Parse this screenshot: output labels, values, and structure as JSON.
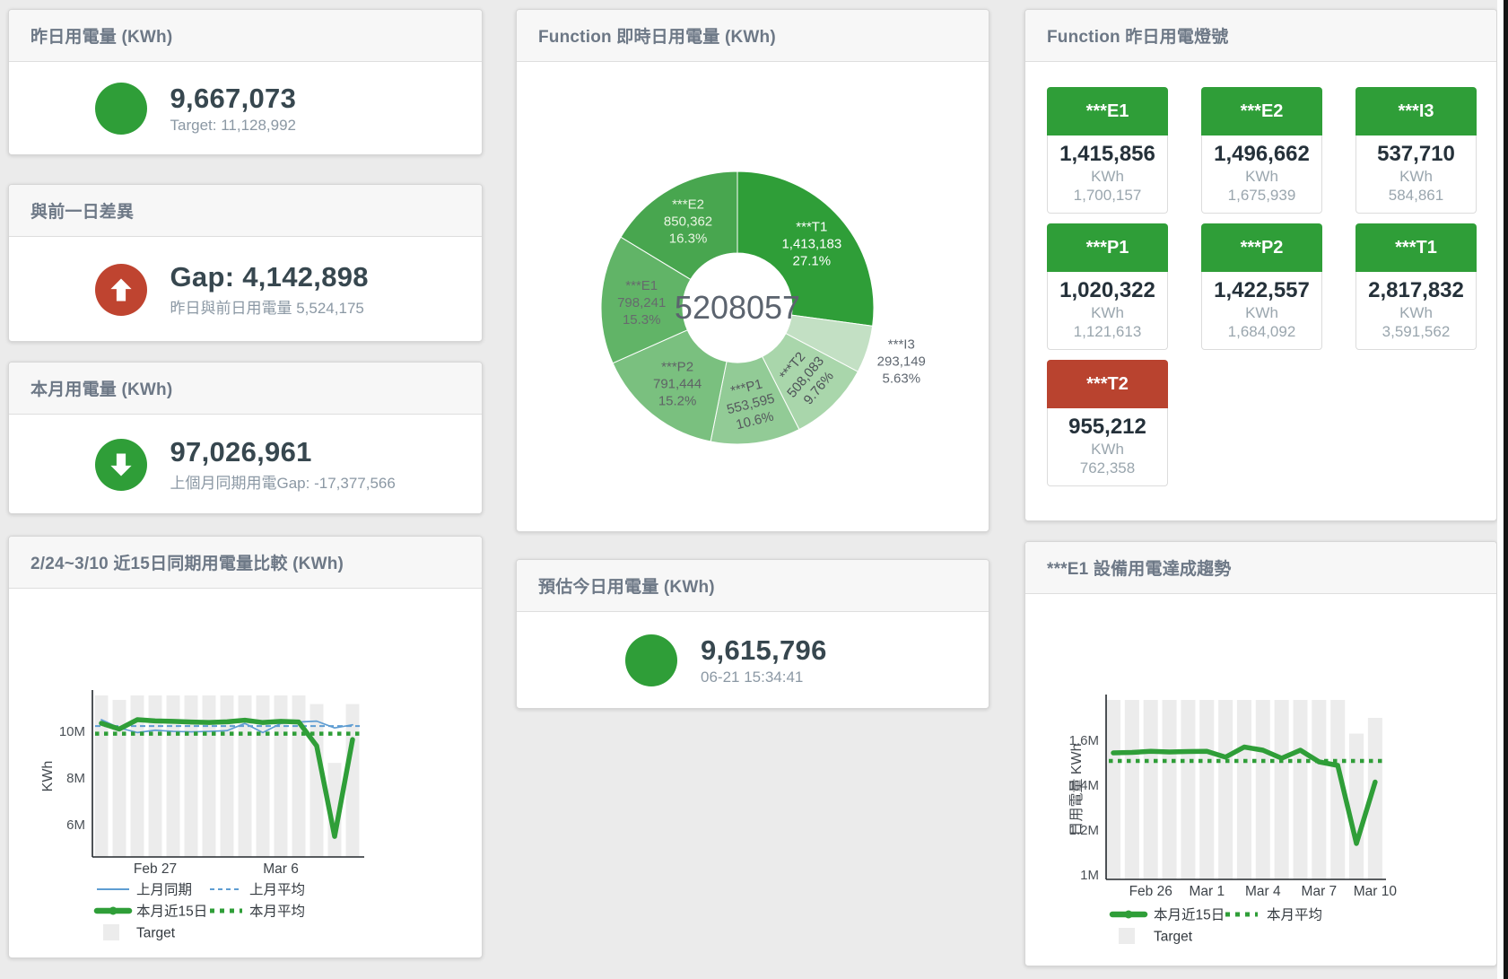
{
  "palette": {
    "green": "#2f9e38",
    "red": "#bf4430",
    "blue": "#5f9dd2",
    "bar_gray": "#ececec",
    "title_gray": "#6d7886",
    "value_dark": "#37474f",
    "subtle_gray": "#8b98a4"
  },
  "cards": {
    "yesterday": {
      "title": "昨日用電量 (KWh)",
      "indicator": "green-circle",
      "value": "9,667,073",
      "subtitle": "Target: 11,128,992"
    },
    "day_gap": {
      "title": "與前一日差異",
      "indicator": "red-circle-up-arrow",
      "value": "Gap: 4,142,898",
      "subtitle": "昨日與前日用電量 5,524,175"
    },
    "month": {
      "title": "本月用電量 (KWh)",
      "indicator": "green-circle-down-arrow",
      "value": "97,026,961",
      "subtitle": "上個月同期用電Gap: -17,377,566"
    },
    "compare": {
      "title": "2/24~3/10 近15日同期用電量比較 (KWh)"
    },
    "realtime": {
      "title": "Function 即時日用電量 (KWh)"
    },
    "forecast": {
      "title": "預估今日用電量 (KWh)",
      "indicator": "green-circle",
      "value": "9,615,796",
      "subtitle": "06-21 15:34:41"
    },
    "lights": {
      "title": "Function 昨日用電燈號",
      "tiles": [
        {
          "label": "***E1",
          "value": "1,415,856",
          "unit": "KWh",
          "target": "1,700,157",
          "status": "green"
        },
        {
          "label": "***E2",
          "value": "1,496,662",
          "unit": "KWh",
          "target": "1,675,939",
          "status": "green"
        },
        {
          "label": "***I3",
          "value": "537,710",
          "unit": "KWh",
          "target": "584,861",
          "status": "green"
        },
        {
          "label": "***P1",
          "value": "1,020,322",
          "unit": "KWh",
          "target": "1,121,613",
          "status": "green"
        },
        {
          "label": "***P2",
          "value": "1,422,557",
          "unit": "KWh",
          "target": "1,684,092",
          "status": "green"
        },
        {
          "label": "***T1",
          "value": "2,817,832",
          "unit": "KWh",
          "target": "3,591,562",
          "status": "green"
        },
        {
          "label": "***T2",
          "value": "955,212",
          "unit": "KWh",
          "target": "762,358",
          "status": "red"
        }
      ]
    },
    "trend": {
      "title": "***E1 設備用電達成趨勢"
    }
  },
  "chart_data": [
    {
      "id": "realtime-donut",
      "type": "pie",
      "title": "Function 即時日用電量 (KWh)",
      "center_total": "5208057",
      "unit": "KWh",
      "legend_position": "labels-on-slices",
      "slices": [
        {
          "name": "***T1",
          "value": 1413183,
          "value_display": "1,413,183",
          "pct": "27.1%",
          "color": "#2f9e38",
          "label_color": "#ffffff",
          "label_r": 110
        },
        {
          "name": "***I3",
          "value": 293149,
          "value_display": "293,149",
          "pct": "5.63%",
          "color": "#c3e0c4",
          "label_color": "#5f6770",
          "outside": true
        },
        {
          "name": "***T2",
          "value": 508083,
          "value_display": "508,083",
          "pct": "9.76%",
          "color": "#a9d6ab",
          "label_color": "#4d5257",
          "rotate": -50
        },
        {
          "name": "***P1",
          "value": 553595,
          "value_display": "553,595",
          "pct": "10.6%",
          "color": "#92cb96",
          "label_color": "#55595d",
          "rotate": -14
        },
        {
          "name": "***P2",
          "value": 791444,
          "value_display": "791,444",
          "pct": "15.2%",
          "color": "#7ac07f",
          "label_color": "#5f6366"
        },
        {
          "name": "***E1",
          "value": 798241,
          "value_display": "798,241",
          "pct": "15.3%",
          "color": "#61b467",
          "label_color": "#666a6d"
        },
        {
          "name": "***E2",
          "value": 850362,
          "value_display": "850,362",
          "pct": "16.3%",
          "color": "#48a64f",
          "label_color": "#e9f5e2",
          "label_r": 112
        }
      ]
    },
    {
      "id": "compare-chart",
      "type": "line",
      "title": "2/24~3/10 近15日同期用電量比較 (KWh)",
      "xlabel": "",
      "ylabel": "KWh",
      "categories": [
        "2/24",
        "2/25",
        "2/26",
        "2/27",
        "2/28",
        "3/1",
        "3/2",
        "3/3",
        "3/4",
        "3/5",
        "3/6",
        "3/7",
        "3/8",
        "3/9",
        "3/10"
      ],
      "x_tick_labels": [
        {
          "index": 3,
          "label": "Feb 27"
        },
        {
          "index": 10,
          "label": "Mar 6"
        }
      ],
      "y_ticks": [
        {
          "v": 6,
          "label": "6M"
        },
        {
          "v": 8,
          "label": "8M"
        },
        {
          "v": 10,
          "label": "10M"
        }
      ],
      "ylim": [
        4.62,
        11.54
      ],
      "grid": false,
      "series": [
        {
          "name": "Target",
          "type": "bar",
          "color": "#ececec",
          "values": [
            11.54,
            11.35,
            11.54,
            11.54,
            11.54,
            11.54,
            11.54,
            11.54,
            11.54,
            11.54,
            11.54,
            11.54,
            11.17,
            8.65,
            11.17
          ]
        },
        {
          "name": "上月同期",
          "type": "line",
          "color": "#5f9dd2",
          "width": 1.7,
          "values": [
            10.5,
            10.15,
            9.95,
            10.05,
            10.0,
            9.98,
            10.0,
            10.03,
            10.34,
            9.95,
            10.34,
            10.4,
            10.44,
            10.15,
            10.28
          ]
        },
        {
          "name": "上月平均",
          "type": "dashed",
          "color": "#5f9dd2",
          "width": 2,
          "value": 10.23
        },
        {
          "name": "本月平均",
          "type": "dotted",
          "color": "#2f9e38",
          "width": 4.5,
          "value": 9.9
        },
        {
          "name": "本月近15日",
          "type": "thickline",
          "color": "#2f9e38",
          "width": 5.5,
          "values": [
            10.35,
            10.1,
            10.5,
            10.45,
            10.43,
            10.4,
            10.38,
            10.41,
            10.48,
            10.38,
            10.43,
            10.4,
            9.38,
            5.5,
            9.65
          ]
        }
      ],
      "legend": [
        [
          {
            "sw": "line",
            "color": "#5f9dd2",
            "label": "上月同期"
          },
          {
            "sw": "dashed",
            "color": "#5f9dd2",
            "label": "上月平均"
          }
        ],
        [
          {
            "sw": "thickline",
            "color": "#2f9e38",
            "label": "本月近15日"
          },
          {
            "sw": "dotted",
            "color": "#2f9e38",
            "label": "本月平均"
          }
        ],
        [
          {
            "sw": "box",
            "color": "#ececec",
            "label": "Target"
          }
        ]
      ]
    },
    {
      "id": "trend-chart",
      "type": "line",
      "title": "***E1 設備用電達成趨勢",
      "xlabel": "",
      "ylabel": "日用電量 KWh",
      "categories": [
        "2/24",
        "2/25",
        "2/26",
        "2/27",
        "2/28",
        "3/1",
        "3/2",
        "3/3",
        "3/4",
        "3/5",
        "3/6",
        "3/7",
        "3/8",
        "3/9",
        "3/10"
      ],
      "x_tick_labels": [
        {
          "index": 2,
          "label": "Feb 26"
        },
        {
          "index": 5,
          "label": "Mar 1"
        },
        {
          "index": 8,
          "label": "Mar 4"
        },
        {
          "index": 11,
          "label": "Mar 7"
        },
        {
          "index": 14,
          "label": "Mar 10"
        }
      ],
      "y_ticks": [
        {
          "v": 1.0,
          "label": "1M"
        },
        {
          "v": 1.2,
          "label": "1.2M"
        },
        {
          "v": 1.4,
          "label": "1.4M"
        },
        {
          "v": 1.6,
          "label": "1.6M"
        }
      ],
      "ylim": [
        0.98,
        1.78
      ],
      "grid": false,
      "series": [
        {
          "name": "Target",
          "type": "bar",
          "color": "#ececec",
          "values": [
            1.78,
            1.78,
            1.78,
            1.78,
            1.78,
            1.78,
            1.78,
            1.78,
            1.78,
            1.78,
            1.78,
            1.78,
            1.78,
            1.63,
            1.7
          ]
        },
        {
          "name": "本月平均",
          "type": "dotted",
          "color": "#2f9e38",
          "width": 4.5,
          "value": 1.508
        },
        {
          "name": "本月近15日",
          "type": "thickline",
          "color": "#2f9e38",
          "width": 5.5,
          "values": [
            1.544,
            1.546,
            1.551,
            1.548,
            1.55,
            1.551,
            1.525,
            1.57,
            1.556,
            1.52,
            1.556,
            1.504,
            1.488,
            1.14,
            1.414
          ]
        }
      ],
      "legend": [
        [
          {
            "sw": "thickline",
            "color": "#2f9e38",
            "label": "本月近15日"
          },
          {
            "sw": "dotted",
            "color": "#2f9e38",
            "label": "本月平均"
          }
        ],
        [
          {
            "sw": "box",
            "color": "#ececec",
            "label": "Target"
          }
        ]
      ]
    }
  ]
}
